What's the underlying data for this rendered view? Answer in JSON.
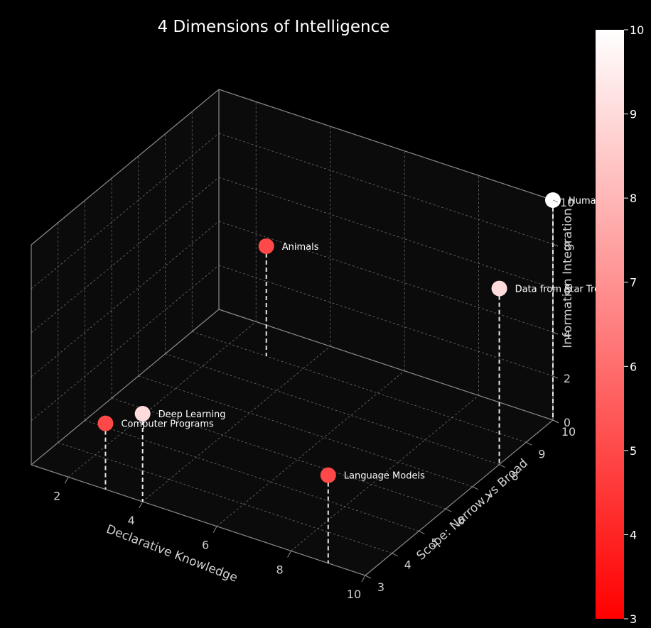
{
  "chart_data": {
    "type": "scatter3d",
    "title": "4 Dimensions of Intelligence",
    "xlabel": "Declarative Knowledge",
    "ylabel": "Scope: Narrow vs Broad",
    "zlabel": "Information Integration",
    "x_ticks": [
      "2",
      "4",
      "6",
      "8",
      "10"
    ],
    "y_ticks": [
      "3",
      "4",
      "5",
      "6",
      "7",
      "8",
      "9",
      "10"
    ],
    "z_ticks": [
      "0",
      "2",
      "4",
      "6",
      "8",
      "10"
    ],
    "xlim": [
      1,
      10
    ],
    "ylim": [
      3,
      10
    ],
    "zlim": [
      0,
      10
    ],
    "grid": true,
    "colorbar": {
      "min": 3,
      "max": 10,
      "ticks": [
        "3",
        "4",
        "5",
        "6",
        "7",
        "8",
        "9",
        "10"
      ],
      "color_low": "#ff0000",
      "color_high": "#ffffff"
    },
    "points": [
      {
        "label": "Humans",
        "x": 10,
        "y": 10,
        "z": 10,
        "color_value": 10
      },
      {
        "label": "Data from Star Trek",
        "x": 10,
        "y": 8,
        "z": 8,
        "color_value": 9
      },
      {
        "label": "Animals",
        "x": 3,
        "y": 9,
        "z": 5,
        "color_value": 5
      },
      {
        "label": "Deep Learning",
        "x": 4,
        "y": 3,
        "z": 4,
        "color_value": 9
      },
      {
        "label": "Computer Programs",
        "x": 3,
        "y": 3,
        "z": 3,
        "color_value": 5
      },
      {
        "label": "Language Models",
        "x": 9,
        "y": 3,
        "z": 4,
        "color_value": 5
      }
    ]
  }
}
